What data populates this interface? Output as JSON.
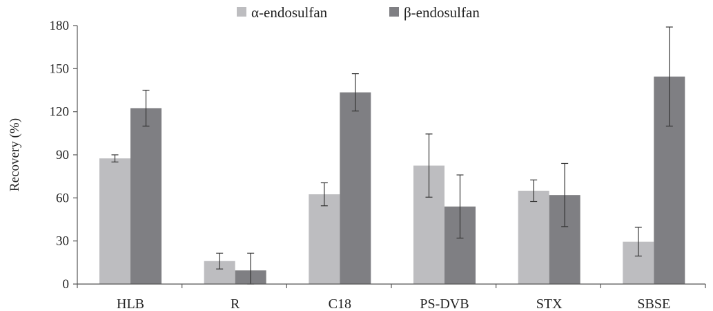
{
  "chart_data": {
    "type": "bar",
    "title": "",
    "xlabel": "",
    "ylabel": "Recovery (%)",
    "ylim": [
      0,
      180
    ],
    "yticks": [
      0,
      30,
      60,
      90,
      120,
      150,
      180
    ],
    "grid": false,
    "legend_position": "top-center",
    "categories": [
      "HLB",
      "R",
      "C18",
      "PS-DVB",
      "STX",
      "SBSE"
    ],
    "series": [
      {
        "name": "α-endosulfan",
        "color": "#bdbdc0",
        "values": [
          87.5,
          16,
          62.5,
          82.5,
          65,
          29.5
        ],
        "error": [
          2.5,
          5.5,
          8,
          22,
          7.5,
          10
        ]
      },
      {
        "name": "β-endosulfan",
        "color": "#7f7f83",
        "values": [
          122.5,
          9.5,
          133.5,
          54,
          62,
          144.5
        ],
        "error": [
          12.5,
          12,
          13,
          22,
          22,
          34.5
        ]
      }
    ]
  }
}
